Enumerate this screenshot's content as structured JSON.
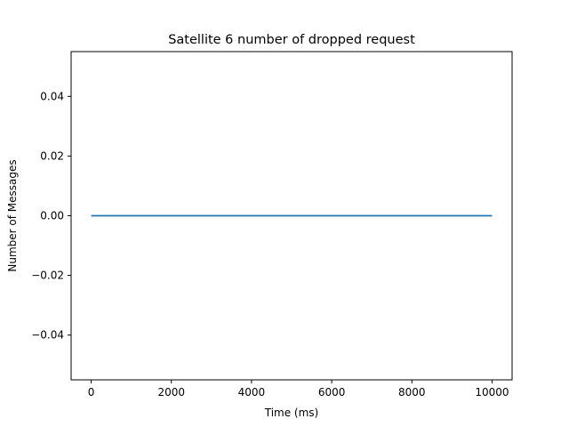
{
  "chart_data": {
    "type": "line",
    "title": "Satellite 6 number of dropped request",
    "xlabel": "Time (ms)",
    "ylabel": "Number of Messages",
    "xlim": [
      -500,
      10500
    ],
    "ylim": [
      -0.055,
      0.055
    ],
    "xticks": [
      0,
      2000,
      4000,
      6000,
      8000,
      10000
    ],
    "xtick_labels": [
      "0",
      "2000",
      "4000",
      "6000",
      "8000",
      "10000"
    ],
    "yticks": [
      -0.04,
      -0.02,
      0.0,
      0.02,
      0.04
    ],
    "ytick_labels": [
      "−0.04",
      "−0.02",
      "0.00",
      "0.02",
      "0.04"
    ],
    "grid": false,
    "series": [
      {
        "color": "#1f77b4",
        "x": [
          0,
          10000
        ],
        "y": [
          0,
          0
        ]
      }
    ]
  }
}
